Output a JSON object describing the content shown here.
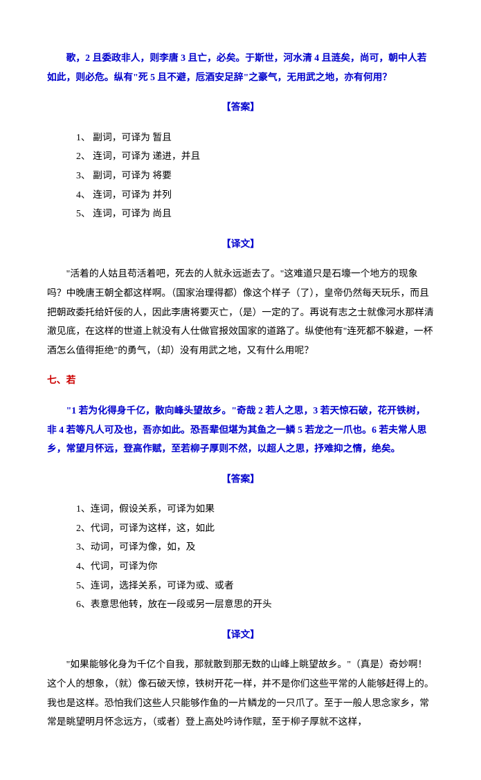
{
  "p1": "歌，2 且委政非人，则李唐 3 且亡，必矣。于斯世，河水清 4 且涟矣，尚可，朝中人若如此，则必危。纵有\"死 5 且不避，卮酒安足辞\"之豪气，无用武之地，亦有何用？",
  "ans": "【答案】",
  "a1": "1、 副词，可译为 暂且",
  "a2": "2、 连词，可译为 递进，并且",
  "a3": "3、 副词，可译为 将要",
  "a4": "4、 连词，可译为 并列",
  "a5": "5、 连词，可译为 尚且",
  "tr": "【译文】",
  "t1": "\"活着的人姑且苟活着吧，死去的人就永远逝去了。\"这难道只是石壕一个地方的现象吗？中晚唐王朝全都这样啊。（国家治理得都）像这个样子（了），皇帝仍然每天玩乐，而且把朝政委托给奸佞的人，因此李唐将要灭亡，（是）一定的了。再说有志之士就像河水那样清澈见底，在这样的世道上就没有人仕做官报效国家的道路了。纵使他有\"连死都不躲避，一杯酒怎么值得拒绝\"的勇气，（却）没有用武之地，又有什么用呢？",
  "h7": "七、若",
  "p2": "\"1 若为化得身千亿，散向峰头望故乡。\"奇哉 2 若人之思，3 若天惊石破，花开铁树，非 4 若等凡人可及也，吾亦如此。恐吾辈但堪为其鱼之一鳞 5 若龙之一爪也。6 若夫常人思乡，常望月怀远，登高作赋，至若柳子厚则不然，以超人之思，抒难抑之情，绝矣。",
  "b1": "1、连词，假设关系，可译为如果",
  "b2": "2、代词，可译为这样，这，如此",
  "b3": "3、动词，可译为像，如，及",
  "b4": "4、代词，可译为你",
  "b5": "5、连词，选择关系，可译为或、或者",
  "b6": "6、表意思他转，放在一段或另一层意思的开头",
  "t2": "\"如果能够化身为千亿个自我，那就散到那无数的山峰上眺望故乡。\"（真是）奇妙啊！这个人的想象，（就）像石破天惊，铁树开花一样，并不是你们这些平常的人能够赶得上的。我也是这样。恐怕我们这些人只能够作鱼的一片鳞龙的一只爪了。至于一般人思念家乡，常常是眺望明月怀念远方，（或者）登上高处吟诗作赋，至于柳子厚就不这样，"
}
